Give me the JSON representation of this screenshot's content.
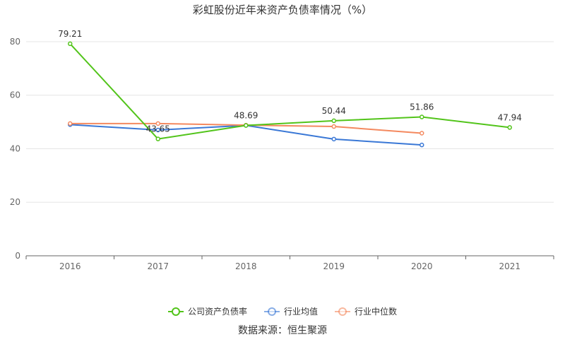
{
  "chart_data": {
    "type": "line",
    "title": "彩虹股份近年来资产负债率情况（%）",
    "categories": [
      "2016",
      "2017",
      "2018",
      "2019",
      "2020",
      "2021"
    ],
    "y_ticks": [
      0,
      20,
      40,
      60,
      80
    ],
    "ylim": [
      0,
      85
    ],
    "grid": true,
    "legend_position": "bottom",
    "series": [
      {
        "name": "公司资产负债率",
        "color": "#52c41a",
        "values": [
          79.21,
          43.65,
          48.69,
          50.44,
          51.86,
          47.94
        ],
        "labels": [
          "79.21",
          "43.65",
          "48.69",
          "50.44",
          "51.86",
          "47.94"
        ]
      },
      {
        "name": "行业均值",
        "color": "#3a78d6",
        "values": [
          49.0,
          47.0,
          48.7,
          43.6,
          41.4,
          null
        ]
      },
      {
        "name": "行业中位数",
        "color": "#f4895f",
        "values": [
          49.4,
          49.4,
          48.8,
          48.3,
          45.8,
          null
        ]
      }
    ],
    "source": "数据来源：恒生聚源"
  }
}
